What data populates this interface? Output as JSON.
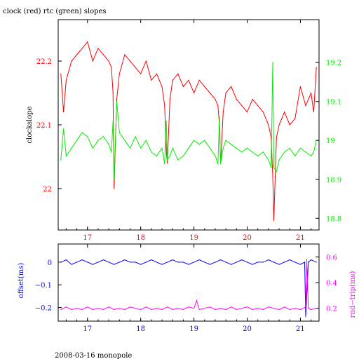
{
  "title": "clock (red) rtc (green) slopes",
  "footer": "2008-03-16 monopole",
  "colors": {
    "clock": "#ff0000",
    "rtc": "#00ee00",
    "offset": "#0000ff",
    "rndtrip": "#ff00ff",
    "axis": "#000000"
  },
  "chart_data": [
    {
      "type": "line",
      "title": "clock (red) rtc (green) slopes",
      "xlabel": "",
      "x_ticks": [
        17,
        18,
        19,
        20,
        21
      ],
      "xlim": [
        16.45,
        21.35
      ],
      "y_left": {
        "label": "clockslope",
        "lim": [
          21.935,
          22.265
        ],
        "ticks": [
          22,
          22.1,
          22.2
        ],
        "tick_labels": [
          "22",
          "22.1",
          "22.2"
        ]
      },
      "y_right": {
        "label": "",
        "lim": [
          18.77,
          19.31
        ],
        "ticks": [
          18.8,
          18.9,
          19,
          19.1,
          19.2
        ],
        "tick_labels": [
          "18.8",
          "18.9",
          "19",
          "19.1",
          "19.2"
        ]
      },
      "grid": false,
      "series": [
        {
          "name": "clock",
          "axis": "left",
          "x": [
            16.5,
            16.55,
            16.6,
            16.7,
            16.8,
            16.9,
            17.0,
            17.1,
            17.2,
            17.3,
            17.4,
            17.45,
            17.48,
            17.5,
            17.55,
            17.6,
            17.7,
            17.8,
            17.9,
            18.0,
            18.1,
            18.2,
            18.3,
            18.4,
            18.45,
            18.48,
            18.5,
            18.55,
            18.6,
            18.7,
            18.8,
            18.9,
            19.0,
            19.1,
            19.2,
            19.3,
            19.4,
            19.45,
            19.48,
            19.5,
            19.55,
            19.6,
            19.7,
            19.8,
            19.9,
            20.0,
            20.1,
            20.2,
            20.3,
            20.4,
            20.45,
            20.48,
            20.5,
            20.55,
            20.6,
            20.7,
            20.8,
            20.9,
            21.0,
            21.1,
            21.2,
            21.25,
            21.3
          ],
          "y": [
            22.18,
            22.12,
            22.17,
            22.2,
            22.21,
            22.22,
            22.23,
            22.2,
            22.22,
            22.21,
            22.2,
            22.19,
            22.15,
            22.0,
            22.14,
            22.18,
            22.21,
            22.2,
            22.19,
            22.18,
            22.2,
            22.17,
            22.18,
            22.16,
            22.13,
            22.06,
            22.04,
            22.14,
            22.17,
            22.18,
            22.16,
            22.17,
            22.15,
            22.17,
            22.16,
            22.15,
            22.14,
            22.13,
            22.1,
            22.04,
            22.12,
            22.15,
            22.16,
            22.14,
            22.13,
            22.12,
            22.14,
            22.13,
            22.12,
            22.1,
            22.08,
            22.02,
            21.95,
            22.08,
            22.1,
            22.12,
            22.1,
            22.11,
            22.16,
            22.13,
            22.15,
            22.12,
            22.19
          ]
        },
        {
          "name": "rtc",
          "axis": "right",
          "x": [
            16.5,
            16.55,
            16.6,
            16.7,
            16.8,
            16.9,
            17.0,
            17.1,
            17.2,
            17.3,
            17.4,
            17.45,
            17.48,
            17.5,
            17.55,
            17.6,
            17.7,
            17.8,
            17.9,
            18.0,
            18.1,
            18.2,
            18.3,
            18.4,
            18.45,
            18.48,
            18.5,
            18.55,
            18.6,
            18.7,
            18.8,
            18.9,
            19.0,
            19.1,
            19.2,
            19.3,
            19.4,
            19.45,
            19.48,
            19.5,
            19.55,
            19.6,
            19.7,
            19.8,
            19.9,
            20.0,
            20.1,
            20.2,
            20.3,
            20.4,
            20.45,
            20.48,
            20.5,
            20.55,
            20.6,
            20.7,
            20.8,
            20.9,
            21.0,
            21.1,
            21.2,
            21.25,
            21.3
          ],
          "y": [
            18.95,
            19.03,
            18.96,
            18.98,
            19.0,
            19.02,
            19.01,
            18.98,
            19.0,
            19.01,
            18.99,
            18.97,
            19.05,
            18.9,
            19.1,
            19.02,
            19.0,
            18.98,
            19.01,
            18.98,
            19.0,
            18.97,
            18.96,
            18.98,
            18.94,
            19.05,
            18.95,
            18.96,
            18.98,
            18.95,
            18.96,
            18.98,
            19.0,
            18.99,
            19.0,
            18.98,
            18.96,
            18.94,
            19.06,
            18.94,
            18.98,
            19.0,
            18.99,
            18.98,
            18.97,
            18.98,
            18.97,
            18.96,
            18.97,
            18.95,
            18.93,
            19.2,
            18.93,
            18.92,
            18.95,
            18.97,
            18.98,
            18.96,
            18.98,
            18.97,
            18.96,
            18.97,
            19.0
          ]
        }
      ]
    },
    {
      "type": "line",
      "title": "",
      "xlabel": "",
      "x_ticks": [
        17,
        18,
        19,
        20,
        21
      ],
      "xlim": [
        16.45,
        21.35
      ],
      "y_left": {
        "label": "offset(ms)",
        "lim": [
          -0.26,
          0.08
        ],
        "ticks": [
          -0.2,
          -0.1,
          0
        ],
        "tick_labels": [
          "−0.2",
          "−0.1",
          "0"
        ]
      },
      "y_right": {
        "label": "rnd−trip(ms)",
        "lim": [
          0.1,
          0.7
        ],
        "ticks": [
          0.2,
          0.4,
          0.6
        ],
        "tick_labels": [
          "0.2",
          "0.4",
          "0.6"
        ]
      },
      "grid": false,
      "series": [
        {
          "name": "offset",
          "axis": "left",
          "x": [
            16.5,
            16.6,
            16.7,
            16.8,
            16.9,
            17.0,
            17.1,
            17.2,
            17.3,
            17.4,
            17.5,
            17.6,
            17.7,
            17.8,
            17.9,
            18.0,
            18.1,
            18.2,
            18.3,
            18.4,
            18.5,
            18.6,
            18.7,
            18.8,
            18.9,
            19.0,
            19.1,
            19.2,
            19.3,
            19.4,
            19.5,
            19.6,
            19.7,
            19.8,
            19.9,
            20.0,
            20.1,
            20.2,
            20.3,
            20.4,
            20.5,
            20.6,
            20.7,
            20.8,
            20.9,
            21.0,
            21.08,
            21.1,
            21.15,
            21.2,
            21.3
          ],
          "y": [
            0.0,
            0.01,
            -0.01,
            0.0,
            0.01,
            0.0,
            -0.01,
            0.0,
            0.01,
            0.0,
            -0.01,
            0.0,
            0.01,
            0.0,
            0.0,
            -0.01,
            0.0,
            0.01,
            0.0,
            -0.01,
            0.0,
            0.01,
            0.0,
            0.0,
            -0.01,
            0.0,
            0.01,
            0.0,
            -0.01,
            0.0,
            0.01,
            0.0,
            -0.01,
            0.0,
            0.01,
            0.0,
            -0.01,
            0.0,
            0.0,
            0.01,
            0.0,
            -0.01,
            0.0,
            0.01,
            0.0,
            -0.01,
            0.0,
            -0.24,
            0.0,
            0.01,
            0.0
          ]
        },
        {
          "name": "rnd-trip",
          "axis": "right",
          "x": [
            16.5,
            16.6,
            16.7,
            16.8,
            16.9,
            17.0,
            17.1,
            17.2,
            17.3,
            17.4,
            17.5,
            17.6,
            17.7,
            17.8,
            17.9,
            18.0,
            18.1,
            18.2,
            18.3,
            18.4,
            18.5,
            18.6,
            18.7,
            18.8,
            18.9,
            19.0,
            19.05,
            19.1,
            19.2,
            19.3,
            19.4,
            19.5,
            19.6,
            19.7,
            19.8,
            19.9,
            20.0,
            20.1,
            20.2,
            20.3,
            20.4,
            20.5,
            20.6,
            20.7,
            20.8,
            20.9,
            21.0,
            21.1,
            21.12,
            21.15,
            21.2,
            21.3
          ],
          "y": [
            0.19,
            0.21,
            0.19,
            0.2,
            0.19,
            0.21,
            0.19,
            0.2,
            0.19,
            0.21,
            0.19,
            0.2,
            0.19,
            0.21,
            0.2,
            0.19,
            0.21,
            0.19,
            0.2,
            0.19,
            0.21,
            0.19,
            0.2,
            0.19,
            0.21,
            0.2,
            0.26,
            0.19,
            0.2,
            0.21,
            0.19,
            0.2,
            0.19,
            0.21,
            0.19,
            0.2,
            0.21,
            0.19,
            0.2,
            0.19,
            0.21,
            0.2,
            0.19,
            0.21,
            0.19,
            0.2,
            0.19,
            0.21,
            0.58,
            0.2,
            0.19,
            0.2
          ]
        }
      ]
    }
  ]
}
